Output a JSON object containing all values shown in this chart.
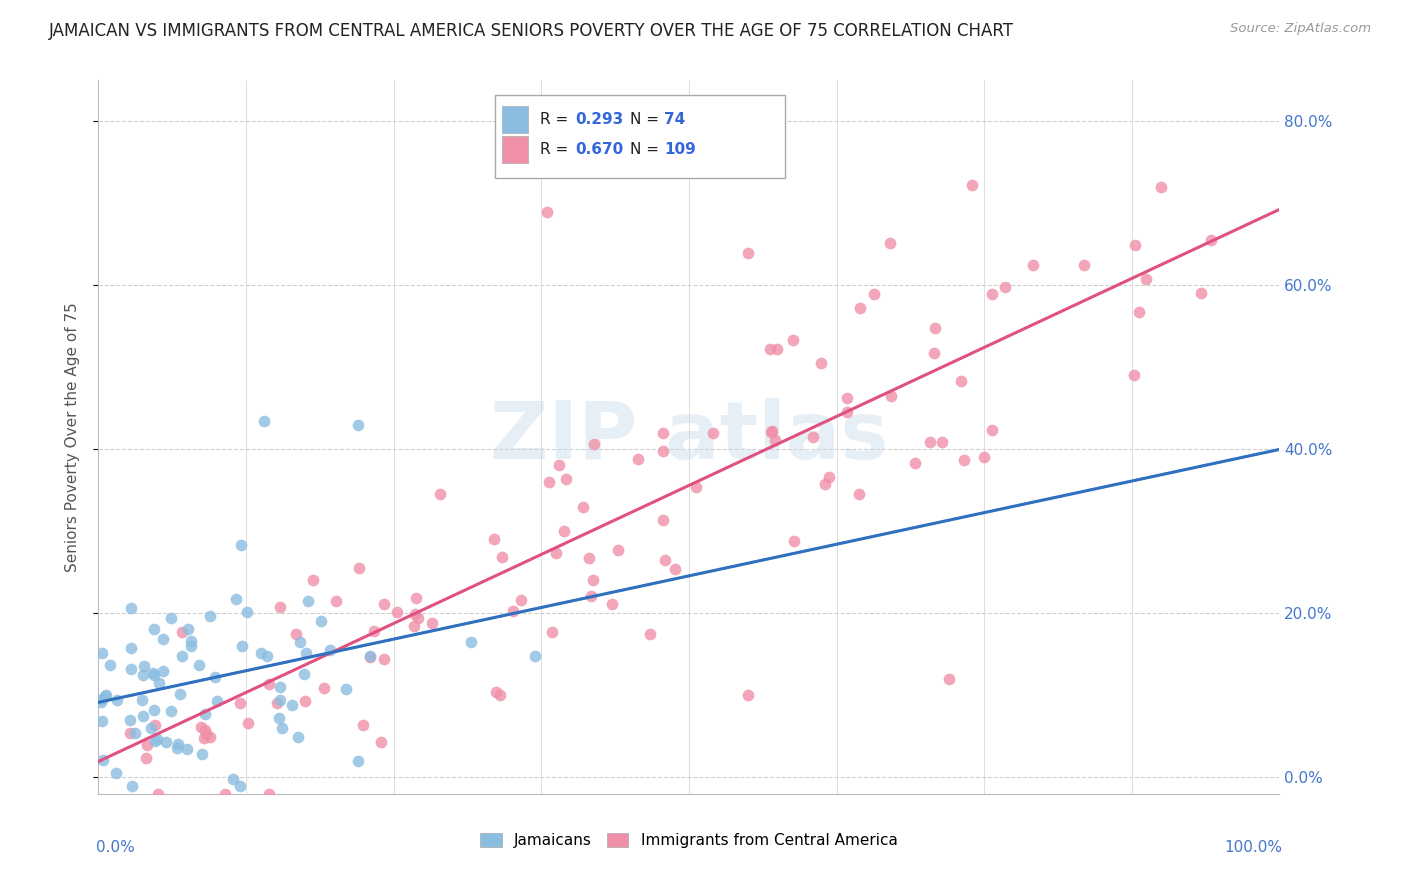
{
  "title": "JAMAICAN VS IMMIGRANTS FROM CENTRAL AMERICA SENIORS POVERTY OVER THE AGE OF 75 CORRELATION CHART",
  "source": "Source: ZipAtlas.com",
  "ylabel": "Seniors Poverty Over the Age of 75",
  "yticks": [
    "0.0%",
    "20.0%",
    "40.0%",
    "60.0%",
    "80.0%"
  ],
  "ytick_vals": [
    0.0,
    0.2,
    0.4,
    0.6,
    0.8
  ],
  "label1": "Jamaicans",
  "label2": "Immigrants from Central America",
  "color1": "#8bbde0",
  "color2": "#f090a8",
  "trendline1_color": "#3070c0",
  "trendline2_color": "#e05080",
  "trendline1_dash": "#7ab8d8",
  "bg_color": "#ffffff",
  "grid_color": "#d0d0d0",
  "title_color": "#222222",
  "axis_label_color": "#555555",
  "r1": "0.293",
  "n1": "74",
  "r2": "0.670",
  "n2": "109",
  "xlim": [
    0.0,
    1.0
  ],
  "ylim": [
    -0.02,
    0.85
  ]
}
